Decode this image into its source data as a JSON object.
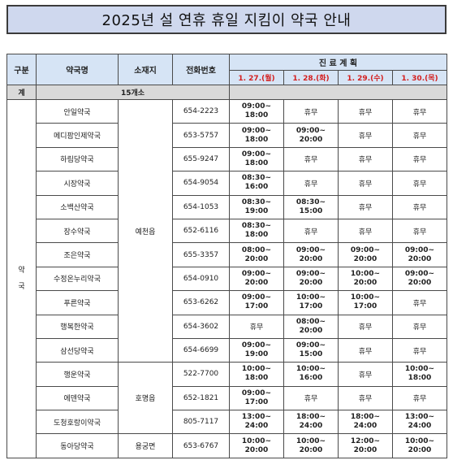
{
  "title": "2025년 설 연휴 휴일 지킴이 약국 안내",
  "headers": {
    "category": "구분",
    "name": "약국명",
    "location": "소재지",
    "phone": "전화번호",
    "schedule": "진 료 계 획",
    "dates": [
      "1. 27.(월)",
      "1. 28.(화)",
      "1. 29.(수)",
      "1. 30.(목)"
    ]
  },
  "total": {
    "label": "계",
    "count": "15개소"
  },
  "category_label": "약\n국",
  "rows": [
    {
      "name": "안일약국",
      "phone": "654-2223",
      "s": [
        "09:00~\n18:00",
        "휴무",
        "휴무",
        "휴무"
      ]
    },
    {
      "name": "메디팜인제약국",
      "phone": "653-5757",
      "s": [
        "09:00~\n18:00",
        "09:00~\n20:00",
        "휴무",
        "휴무"
      ]
    },
    {
      "name": "하림당약국",
      "phone": "655-9247",
      "s": [
        "09:00~\n18:00",
        "휴무",
        "휴무",
        "휴무"
      ]
    },
    {
      "name": "시장약국",
      "phone": "654-9054",
      "s": [
        "08:30~\n16:00",
        "휴무",
        "휴무",
        "휴무"
      ]
    },
    {
      "name": "소백산약국",
      "phone": "654-1053",
      "s": [
        "08:30~\n19:00",
        "08:30~\n15:00",
        "휴무",
        "휴무"
      ]
    },
    {
      "name": "장수약국",
      "phone": "652-6116",
      "s": [
        "08:30~\n18:00",
        "휴무",
        "휴무",
        "휴무"
      ]
    },
    {
      "name": "조은약국",
      "phone": "655-3357",
      "s": [
        "08:00~\n20:00",
        "09:00~\n20:00",
        "09:00~\n20:00",
        "09:00~\n20:00"
      ]
    },
    {
      "name": "수정온누리약국",
      "phone": "654-0910",
      "s": [
        "09:00~\n20:00",
        "09:00~\n20:00",
        "10:00~\n20:00",
        "09:00~\n20:00"
      ]
    },
    {
      "name": "푸른약국",
      "phone": "653-6262",
      "s": [
        "09:00~\n17:00",
        "10:00~\n17:00",
        "10:00~\n17:00",
        "휴무"
      ]
    },
    {
      "name": "행복한약국",
      "phone": "654-3602",
      "s": [
        "휴무",
        "08:00~\n20:00",
        "휴무",
        "휴무"
      ]
    },
    {
      "name": "삼선당약국",
      "phone": "654-6699",
      "s": [
        "09:00~\n19:00",
        "09:00~\n15:00",
        "휴무",
        "휴무"
      ]
    },
    {
      "name": "행운약국",
      "phone": "522-7700",
      "s": [
        "10:00~\n18:00",
        "10:00~\n16:00",
        "휴무",
        "10:00~\n18:00"
      ]
    },
    {
      "name": "에덴약국",
      "phone": "652-1821",
      "s": [
        "09:00~\n17:00",
        "휴무",
        "휴무",
        "휴무"
      ]
    },
    {
      "name": "도청호랑이약국",
      "phone": "805-7117",
      "s": [
        "13:00~\n24:00",
        "18:00~\n24:00",
        "18:00~\n24:00",
        "13:00~\n24:00"
      ]
    },
    {
      "name": "동아당약국",
      "phone": "653-6767",
      "s": [
        "10:00~\n20:00",
        "10:00~\n20:00",
        "12:00~\n20:00",
        "10:00~\n20:00"
      ]
    }
  ],
  "locations": [
    {
      "label": "예천읍",
      "start": 0,
      "span": 11
    },
    {
      "label": "호명읍",
      "start": 11,
      "span": 3
    },
    {
      "label": "용궁면",
      "start": 14,
      "span": 1
    }
  ],
  "closed_label": "휴무"
}
